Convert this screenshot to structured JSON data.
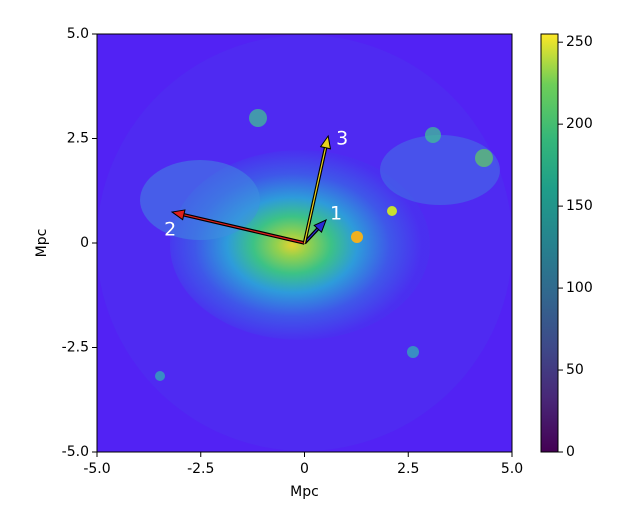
{
  "chart_data": {
    "type": "image",
    "xlabel": "Mpc",
    "ylabel": "Mpc",
    "xlim": [
      -5,
      5
    ],
    "ylim": [
      -5,
      5
    ],
    "xticks": [
      {
        "value": -5,
        "label": "-5.0"
      },
      -2.5,
      0,
      2.5,
      {
        "value": 5,
        "label": "5.0"
      }
    ],
    "yticks": [
      {
        "value": -5,
        "label": "-5.0"
      },
      -2.5,
      0,
      2.5,
      {
        "value": 5,
        "label": "5.0"
      }
    ],
    "colorbar": {
      "colormap": "viridis",
      "clim": [
        0,
        255
      ],
      "ticks": [
        0,
        50,
        100,
        150,
        200,
        250
      ]
    },
    "vectors": [
      {
        "label": "1",
        "x": 0.52,
        "y": 0.55,
        "color": "#2b2bd6"
      },
      {
        "label": "2",
        "x": -3.19,
        "y": 0.74,
        "color": "#e0201c"
      },
      {
        "label": "3",
        "x": 0.57,
        "y": 2.56,
        "color": "#e8d21c"
      }
    ]
  }
}
